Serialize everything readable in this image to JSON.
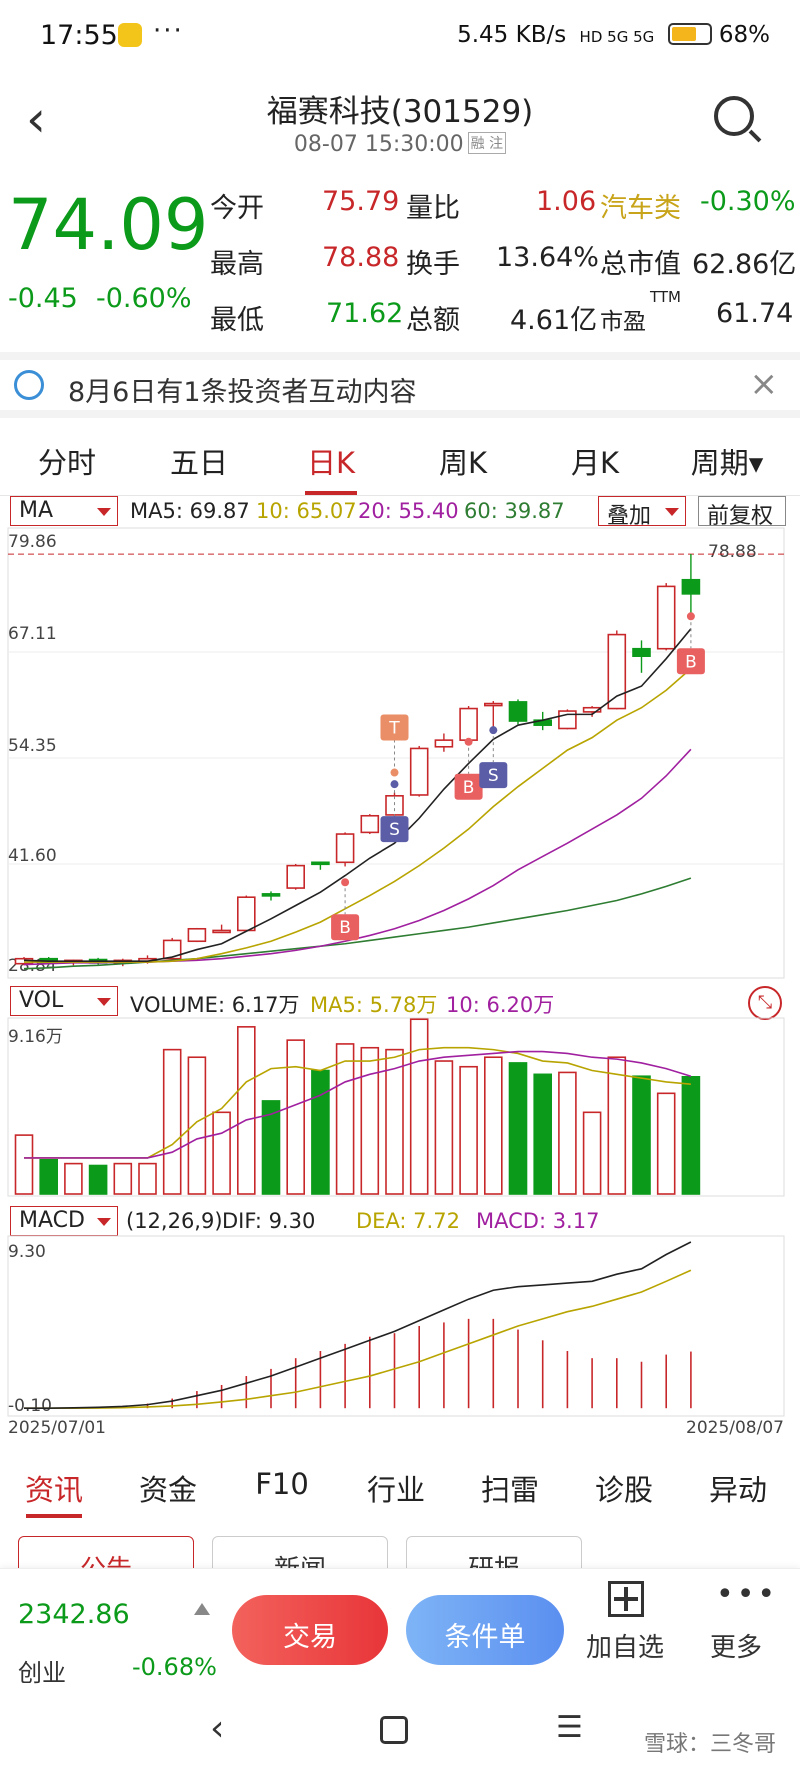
{
  "status_bar": {
    "time": "17:55",
    "speed": "5.45 KB/s",
    "signal": "HD 5G 5G",
    "battery": "68%"
  },
  "header": {
    "title": "福赛科技(301529)",
    "datetime": "08-07 15:30:00",
    "tag": "融 注"
  },
  "quote": {
    "price": "74.09",
    "change": "-0.45",
    "change_pct": "-0.60%",
    "open_label": "今开",
    "open": "75.79",
    "high_label": "最高",
    "high": "78.88",
    "low_label": "最低",
    "low": "71.62",
    "vol_ratio_label": "量比",
    "vol_ratio": "1.06",
    "turnover_label": "换手",
    "turnover": "13.64%",
    "amount_label": "总额",
    "amount": "4.61亿",
    "sector_label": "汽车类",
    "sector_pct": "-0.30%",
    "mcap_label": "总市值",
    "mcap": "62.86亿",
    "pe_label": "市盈",
    "pe_sup": "TTM",
    "pe": "61.74"
  },
  "notice": {
    "text": "8月6日有1条投资者互动内容"
  },
  "tabs": [
    "分时",
    "五日",
    "日K",
    "周K",
    "月K",
    "周期▾"
  ],
  "ma_row": {
    "select": "MA",
    "ma5": "MA5: 69.87",
    "ma10": "10: 65.07",
    "ma20": "20: 55.40",
    "ma60": "60: 39.87",
    "overlay": "叠加",
    "adjust": "前复权"
  },
  "price_axis": [
    "79.86",
    "67.11",
    "54.35",
    "41.60",
    "28.84"
  ],
  "high_marker": "78.88",
  "vol_row": {
    "select": "VOL",
    "vol": "VOLUME: 6.17万",
    "ma5": "MA5: 5.78万",
    "ma10": "10: 6.20万",
    "axis_top": "9.16万"
  },
  "macd_row": {
    "select": "MACD",
    "params": "(12,26,9)",
    "dif": "DIF: 9.30",
    "dea": "DEA: 7.72",
    "macd": "MACD: 3.17",
    "axis_top": "9.30",
    "axis_bottom": "-0.10"
  },
  "date_start": "2025/07/01",
  "date_end": "2025/08/07",
  "signals": {
    "buy": "B",
    "sell": "S",
    "take": "T"
  },
  "bottom_tabs": [
    "资讯",
    "资金",
    "F10",
    "行业",
    "扫雷",
    "诊股",
    "异动"
  ],
  "sub_tabs": [
    "公告",
    "新闻",
    "研报"
  ],
  "bottom_bar": {
    "index_value": "2342.86",
    "index_name": "创业",
    "index_pct": "-0.68%",
    "trade": "交易",
    "condition": "条件单",
    "add": "加自选",
    "more": "更多"
  },
  "watermark": "雪球：三冬哥",
  "colors": {
    "up": "#c8272a",
    "down": "#0c9a1a",
    "ma5": "#222222",
    "ma10": "#b8a400",
    "ma20": "#a020a0",
    "ma60": "#2e7d32"
  },
  "chart_data": {
    "type": "candlestick",
    "dates_range": [
      "2025/07/01",
      "2025/08/07"
    ],
    "ylim": [
      28.84,
      79.86
    ],
    "candles": [
      {
        "o": 29.6,
        "h": 30.4,
        "l": 29.4,
        "c": 30.2
      },
      {
        "o": 30.2,
        "h": 30.4,
        "l": 29.4,
        "c": 29.7
      },
      {
        "o": 29.8,
        "h": 30.1,
        "l": 29.4,
        "c": 30.0
      },
      {
        "o": 30.1,
        "h": 30.3,
        "l": 29.5,
        "c": 29.7
      },
      {
        "o": 29.7,
        "h": 30.2,
        "l": 29.3,
        "c": 30.0
      },
      {
        "o": 29.9,
        "h": 30.6,
        "l": 29.6,
        "c": 30.2
      },
      {
        "o": 30.2,
        "h": 32.7,
        "l": 30.0,
        "c": 32.4
      },
      {
        "o": 32.3,
        "h": 33.9,
        "l": 32.2,
        "c": 33.8
      },
      {
        "o": 33.6,
        "h": 34.3,
        "l": 33.4,
        "c": 33.6
      },
      {
        "o": 33.6,
        "h": 37.8,
        "l": 33.5,
        "c": 37.6
      },
      {
        "o": 38.0,
        "h": 38.3,
        "l": 37.2,
        "c": 37.9
      },
      {
        "o": 38.7,
        "h": 41.6,
        "l": 38.5,
        "c": 41.4
      },
      {
        "o": 41.8,
        "h": 41.9,
        "l": 40.9,
        "c": 41.7
      },
      {
        "o": 41.8,
        "h": 45.4,
        "l": 41.3,
        "c": 45.2
      },
      {
        "o": 45.4,
        "h": 47.6,
        "l": 45.2,
        "c": 47.4
      },
      {
        "o": 47.5,
        "h": 50.2,
        "l": 47.3,
        "c": 49.8
      },
      {
        "o": 49.9,
        "h": 55.8,
        "l": 49.7,
        "c": 55.5
      },
      {
        "o": 55.7,
        "h": 57.3,
        "l": 55.1,
        "c": 56.5
      },
      {
        "o": 56.5,
        "h": 60.6,
        "l": 56.3,
        "c": 60.3
      },
      {
        "o": 60.7,
        "h": 61.2,
        "l": 57.7,
        "c": 60.9
      },
      {
        "o": 61.1,
        "h": 61.4,
        "l": 58.4,
        "c": 58.8
      },
      {
        "o": 58.9,
        "h": 59.9,
        "l": 57.7,
        "c": 58.3
      },
      {
        "o": 57.9,
        "h": 60.2,
        "l": 57.8,
        "c": 60.0
      },
      {
        "o": 59.9,
        "h": 60.6,
        "l": 59.3,
        "c": 60.4
      },
      {
        "o": 60.3,
        "h": 69.7,
        "l": 60.2,
        "c": 69.2
      },
      {
        "o": 67.5,
        "h": 68.5,
        "l": 64.6,
        "c": 66.6
      },
      {
        "o": 67.5,
        "h": 75.4,
        "l": 67.3,
        "c": 75.0
      },
      {
        "o": 75.8,
        "h": 78.9,
        "l": 71.6,
        "c": 74.1
      }
    ],
    "ma5": [
      30.0,
      29.9,
      29.9,
      29.9,
      29.9,
      29.9,
      30.4,
      31.3,
      32.0,
      33.5,
      35.0,
      36.6,
      38.2,
      40.2,
      42.3,
      44.1,
      47.1,
      50.6,
      53.7,
      56.6,
      58.3,
      58.9,
      59.6,
      59.6,
      61.8,
      63.0,
      66.3,
      69.9
    ],
    "ma10": [
      29.8,
      29.8,
      29.8,
      29.8,
      29.8,
      29.8,
      29.9,
      30.2,
      30.8,
      31.5,
      32.3,
      33.4,
      34.6,
      36.2,
      37.8,
      39.5,
      41.4,
      43.5,
      45.8,
      48.5,
      50.9,
      53.1,
      55.3,
      56.8,
      58.9,
      60.4,
      62.5,
      65.1
    ],
    "ma20": [
      29.5,
      29.6,
      29.7,
      29.7,
      29.8,
      29.8,
      29.9,
      30.0,
      30.2,
      30.5,
      30.8,
      31.2,
      31.7,
      32.3,
      33.0,
      33.8,
      34.8,
      36.0,
      37.4,
      39.0,
      40.9,
      42.5,
      44.1,
      45.8,
      47.5,
      49.5,
      52.2,
      55.4
    ],
    "ma60": [
      29.0,
      29.1,
      29.3,
      29.4,
      29.6,
      29.8,
      30.0,
      30.2,
      30.5,
      30.8,
      31.1,
      31.4,
      31.7,
      32.0,
      32.4,
      32.8,
      33.2,
      33.6,
      34.0,
      34.5,
      35.0,
      35.5,
      36.0,
      36.6,
      37.2,
      38.0,
      38.9,
      39.9
    ],
    "volume_wan": [
      3.1,
      1.8,
      1.6,
      1.5,
      1.6,
      1.6,
      7.6,
      7.2,
      4.3,
      8.8,
      4.9,
      8.1,
      6.5,
      7.9,
      7.7,
      7.6,
      9.2,
      7.0,
      6.7,
      7.2,
      6.9,
      6.3,
      6.4,
      4.3,
      7.2,
      6.2,
      5.3,
      6.17
    ],
    "vol_ma5": [
      1.9,
      1.9,
      1.9,
      1.9,
      1.9,
      1.9,
      2.6,
      3.8,
      4.5,
      5.9,
      6.6,
      6.7,
      6.5,
      7.0,
      7.0,
      7.2,
      7.6,
      7.7,
      7.7,
      7.6,
      7.4,
      7.0,
      6.9,
      6.5,
      6.3,
      6.1,
      5.9,
      5.78
    ],
    "vol_ma10": [
      1.9,
      1.9,
      1.9,
      1.9,
      1.9,
      1.9,
      2.2,
      2.9,
      3.2,
      3.9,
      4.2,
      4.7,
      5.2,
      5.9,
      6.3,
      6.6,
      7.0,
      7.2,
      7.3,
      7.4,
      7.5,
      7.5,
      7.4,
      7.2,
      7.1,
      6.9,
      6.6,
      6.2
    ],
    "dif": [
      0.0,
      0.0,
      0.02,
      0.05,
      0.1,
      0.2,
      0.4,
      0.7,
      1.0,
      1.4,
      1.8,
      2.3,
      2.8,
      3.3,
      3.8,
      4.3,
      4.9,
      5.5,
      6.1,
      6.6,
      6.8,
      6.9,
      7.0,
      7.1,
      7.5,
      7.8,
      8.6,
      9.3
    ],
    "dea": [
      0.0,
      0.0,
      0.0,
      0.01,
      0.03,
      0.07,
      0.13,
      0.22,
      0.35,
      0.5,
      0.7,
      0.9,
      1.2,
      1.5,
      1.8,
      2.2,
      2.6,
      3.1,
      3.6,
      4.1,
      4.6,
      5.0,
      5.4,
      5.7,
      6.1,
      6.5,
      7.1,
      7.72
    ],
    "macd_hist": [
      0.0,
      0.0,
      0.04,
      0.08,
      0.14,
      0.26,
      0.54,
      0.96,
      1.3,
      1.8,
      2.2,
      2.8,
      3.2,
      3.6,
      4.0,
      4.2,
      4.6,
      4.8,
      5.0,
      5.0,
      4.4,
      3.8,
      3.2,
      2.8,
      2.8,
      2.6,
      3.0,
      3.17
    ]
  }
}
